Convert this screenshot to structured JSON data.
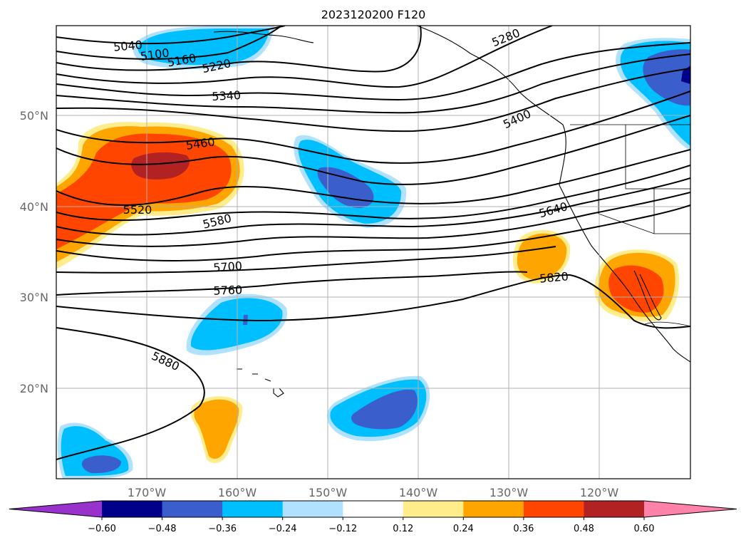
{
  "title": "2023120200 F120",
  "lat_ticks": [
    "50°N",
    "40°N",
    "30°N",
    "20°N"
  ],
  "lon_ticks": [
    "170°W",
    "160°W",
    "150°W",
    "140°W",
    "130°W",
    "120°W"
  ],
  "contour_labels": [
    "5040",
    "5100",
    "5160",
    "5220",
    "5280",
    "5340",
    "5400",
    "5460",
    "5520",
    "5580",
    "5640",
    "5700",
    "5760",
    "5820",
    "5880"
  ],
  "colorbar": {
    "tick_labels": [
      "−0.60",
      "−0.48",
      "−0.36",
      "−0.24",
      "−0.12",
      "0.12",
      "0.24",
      "0.36",
      "0.48",
      "0.60"
    ],
    "colors": [
      "#9932cc",
      "#00008b",
      "#3a5fcd",
      "#00bfff",
      "#b0e2ff",
      "#ffffff",
      "#ffec8b",
      "#ffa500",
      "#ff4500",
      "#b22222",
      "#ff82ab"
    ]
  },
  "chart_data": {
    "type": "map",
    "title": "2023120200 F120",
    "lat_ticks": [
      50,
      40,
      30,
      20
    ],
    "lon_ticks": [
      -170,
      -160,
      -150,
      -140,
      -130,
      -120
    ],
    "contour_levels": [
      5040,
      5100,
      5160,
      5220,
      5280,
      5340,
      5400,
      5460,
      5520,
      5580,
      5640,
      5700,
      5760,
      5820,
      5880
    ],
    "colorbar_levels": [
      -0.6,
      -0.48,
      -0.36,
      -0.24,
      -0.12,
      0.12,
      0.24,
      0.36,
      0.48,
      0.6
    ],
    "colorbar_extend": "both"
  }
}
